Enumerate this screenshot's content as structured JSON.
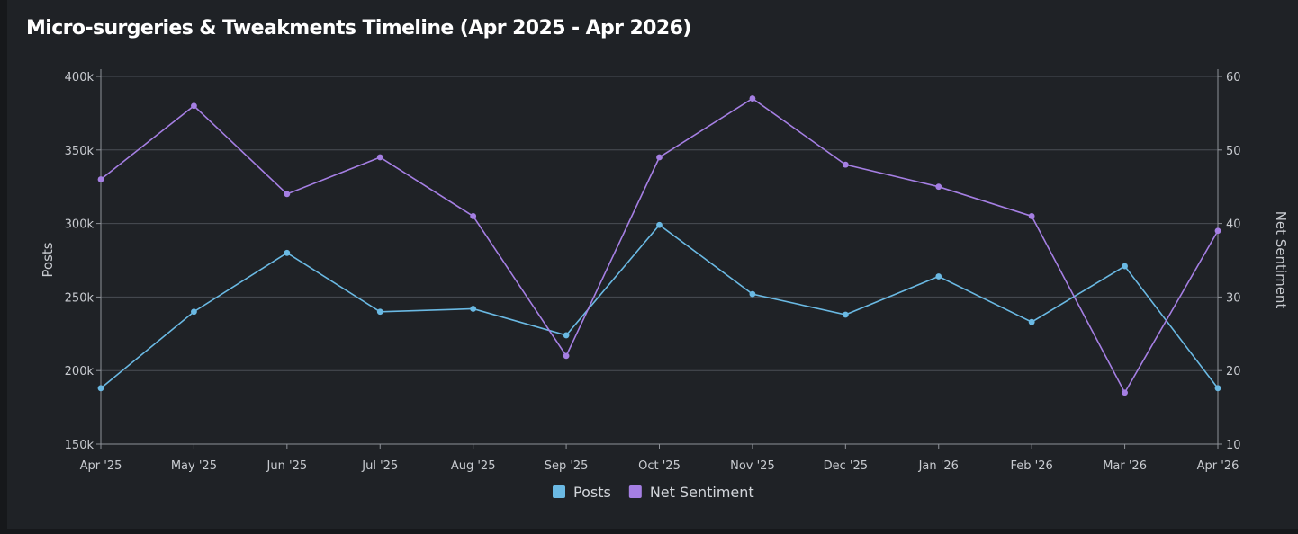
{
  "title": "Micro-surgeries & Tweakments Timeline (Apr 2025 - Apr 2026)",
  "chart_data": {
    "type": "line",
    "title": "Micro-surgeries & Tweakments Timeline (Apr 2025 - Apr 2026)",
    "categories": [
      "Apr '25",
      "May '25",
      "Jun '25",
      "Jul '25",
      "Aug '25",
      "Sep '25",
      "Oct '25",
      "Nov '25",
      "Dec '25",
      "Jan '26",
      "Feb '26",
      "Mar '26",
      "Apr '26"
    ],
    "series": [
      {
        "name": "Posts",
        "axis": "left",
        "color": "#6ab9e3",
        "values": [
          188000,
          240000,
          280000,
          240000,
          242000,
          224000,
          299000,
          252000,
          238000,
          264000,
          233000,
          271000,
          188000
        ]
      },
      {
        "name": "Net Sentiment",
        "axis": "right",
        "color": "#a57fe3",
        "values": [
          46,
          56,
          44,
          49,
          41,
          22,
          49,
          57,
          48,
          45,
          41,
          17,
          39
        ]
      }
    ],
    "y_left": {
      "label": "Posts",
      "range": [
        150000,
        400000
      ],
      "ticks": [
        150000,
        200000,
        250000,
        300000,
        350000,
        400000
      ],
      "tick_labels": [
        "150k",
        "200k",
        "250k",
        "300k",
        "350k",
        "400k"
      ]
    },
    "y_right": {
      "label": "Net Sentiment",
      "range": [
        10,
        60
      ],
      "ticks": [
        10,
        20,
        30,
        40,
        50,
        60
      ],
      "tick_labels": [
        "10",
        "20",
        "30",
        "40",
        "50",
        "60"
      ]
    },
    "grid": true,
    "legend": "bottom-center",
    "colors": {
      "grid": "#4a4e55",
      "axis": "#8e9298"
    }
  }
}
